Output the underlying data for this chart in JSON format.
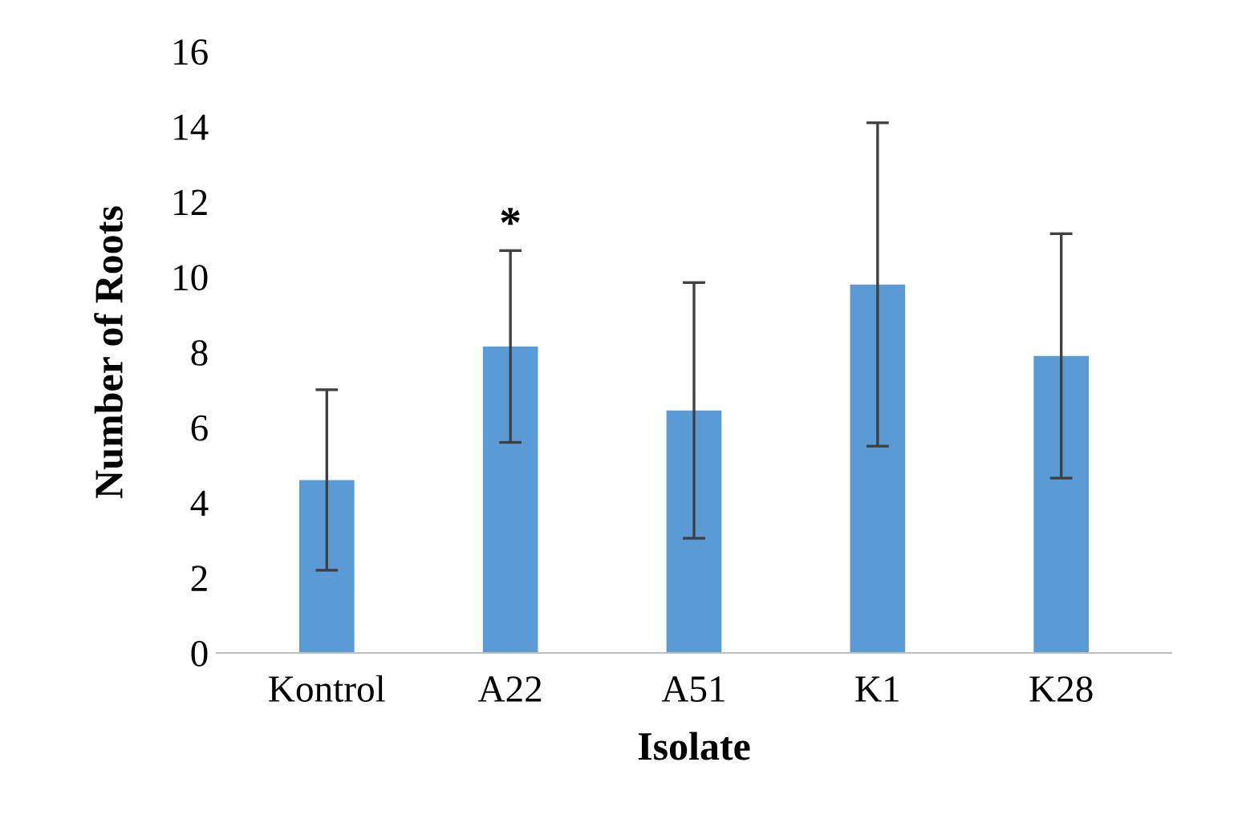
{
  "chart_data": {
    "type": "bar",
    "categories": [
      "Kontrol",
      "A22",
      "A51",
      "K1",
      "K28"
    ],
    "values": [
      4.6,
      8.15,
      6.45,
      9.8,
      7.9
    ],
    "errors": [
      2.4,
      2.55,
      3.4,
      4.3,
      3.25
    ],
    "color": "#5b9bd5",
    "xlabel": "Isolate",
    "ylabel": "Number of Roots",
    "ylim": [
      0,
      16
    ],
    "yticks": [
      0,
      2,
      4,
      6,
      8,
      10,
      12,
      14,
      16
    ],
    "annotations": [
      {
        "text": "*",
        "x": "A22",
        "y": 10.8
      }
    ],
    "grid": false,
    "legend": false
  }
}
